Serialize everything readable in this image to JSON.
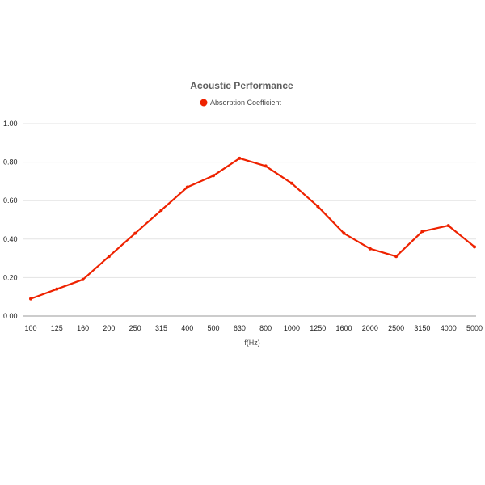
{
  "colors": {
    "series": "#ee2200",
    "background": "#ffffff"
  },
  "chart_data": {
    "type": "line",
    "title": "Acoustic Performance",
    "xlabel": "f(Hz)",
    "ylabel": "",
    "categories": [
      "100",
      "125",
      "160",
      "200",
      "250",
      "315",
      "400",
      "500",
      "630",
      "800",
      "1000",
      "1250",
      "1600",
      "2000",
      "2500",
      "3150",
      "4000",
      "5000"
    ],
    "series": [
      {
        "name": "Absorption Coefficient",
        "values": [
          0.09,
          0.14,
          0.19,
          0.31,
          0.43,
          0.55,
          0.67,
          0.73,
          0.82,
          0.78,
          0.69,
          0.57,
          0.43,
          0.35,
          0.31,
          0.44,
          0.47,
          0.36
        ]
      }
    ],
    "ylim": [
      0,
      1
    ],
    "yticks": [
      "0.00",
      "0.20",
      "0.40",
      "0.60",
      "0.80",
      "1.00"
    ],
    "ytick_values": [
      0,
      0.2,
      0.4,
      0.6,
      0.8,
      1.0
    ],
    "grid": true,
    "legend": "top-center"
  }
}
